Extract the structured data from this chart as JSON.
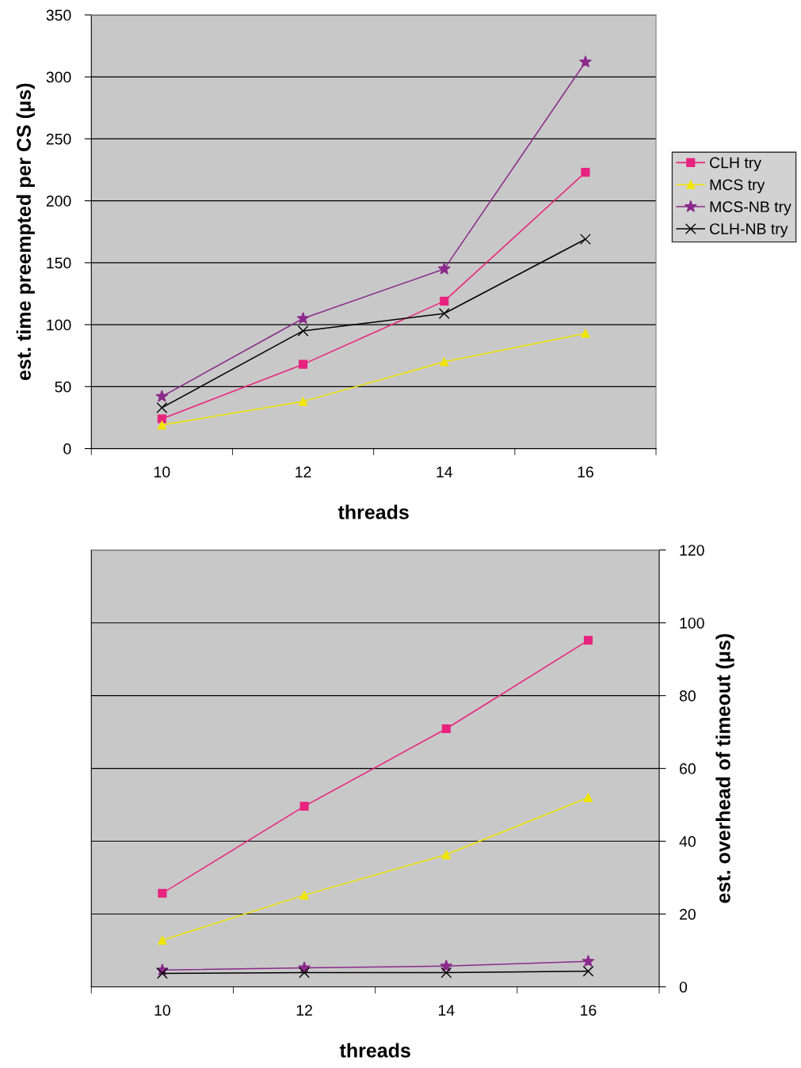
{
  "chart_data": [
    {
      "type": "line",
      "categories": [
        "10",
        "12",
        "14",
        "16"
      ],
      "xlabel": "threads",
      "ylabel": "est. time preempted per CS (μs)",
      "ylim": [
        0,
        350
      ],
      "yticks": [
        0,
        50,
        100,
        150,
        200,
        250,
        300,
        350
      ],
      "grid": "y",
      "legend": "right",
      "series": [
        {
          "name": "CLH try",
          "color": "#e8237f",
          "marker": "square",
          "values": [
            24,
            68,
            119,
            223
          ]
        },
        {
          "name": "MCS try",
          "color": "#f2e600",
          "marker": "triangle",
          "values": [
            19,
            38,
            70,
            93
          ]
        },
        {
          "name": "MCS-NB try",
          "color": "#8b2a8b",
          "marker": "star",
          "values": [
            42,
            105,
            145,
            312
          ]
        },
        {
          "name": "CLH-NB try",
          "color": "#000000",
          "marker": "cross",
          "values": [
            33,
            95,
            109,
            169
          ]
        }
      ]
    },
    {
      "type": "line",
      "categories": [
        "10",
        "12",
        "14",
        "16"
      ],
      "xlabel": "threads",
      "y2label": "est. overhead of timeout (μs)",
      "y2lim": [
        0,
        120
      ],
      "y2ticks": [
        0,
        20,
        40,
        60,
        80,
        100,
        120
      ],
      "grid": "y",
      "series": [
        {
          "color": "#e8237f",
          "marker": "square",
          "axis": "y2",
          "values": [
            25.7,
            49.6,
            70.9,
            95.2
          ]
        },
        {
          "color": "#f2e600",
          "marker": "triangle",
          "axis": "y2",
          "values": [
            12.8,
            25.2,
            36.3,
            52
          ]
        },
        {
          "color": "#8b2a8b",
          "marker": "star",
          "axis": "y2",
          "values": [
            4.6,
            5.2,
            5.7,
            7
          ]
        },
        {
          "color": "#000000",
          "marker": "cross",
          "axis": "y2",
          "values": [
            3.7,
            3.9,
            3.9,
            4.3
          ]
        }
      ]
    }
  ]
}
